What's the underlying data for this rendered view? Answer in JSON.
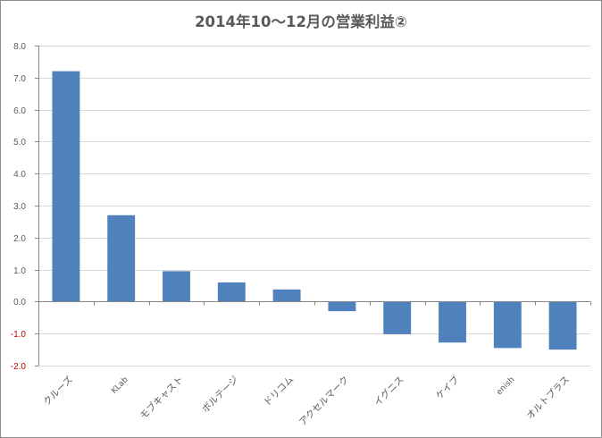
{
  "chart_data": {
    "type": "bar",
    "title": "2014年10～12月の営業利益②",
    "categories": [
      "クルーズ",
      "KLab",
      "モブキャスト",
      "ボルテージ",
      "ドリコム",
      "アクセルマーク",
      "イグニス",
      "ケイブ",
      "enish",
      "オルトプラス"
    ],
    "values": [
      7.2,
      2.7,
      0.95,
      0.6,
      0.38,
      -0.3,
      -1.02,
      -1.28,
      -1.45,
      -1.5
    ],
    "ylim": [
      -2.0,
      8.0
    ],
    "yticks": [
      "8.0",
      "7.0",
      "6.0",
      "5.0",
      "4.0",
      "3.0",
      "2.0",
      "1.0",
      "0.0",
      "-1.0",
      "-2.0"
    ],
    "ytick_values": [
      8,
      7,
      6,
      5,
      4,
      3,
      2,
      1,
      0,
      -1,
      -2
    ],
    "grid": true,
    "bar_color": "#4f81bd",
    "negative_tick_color": "#c00000",
    "legend": "none"
  }
}
